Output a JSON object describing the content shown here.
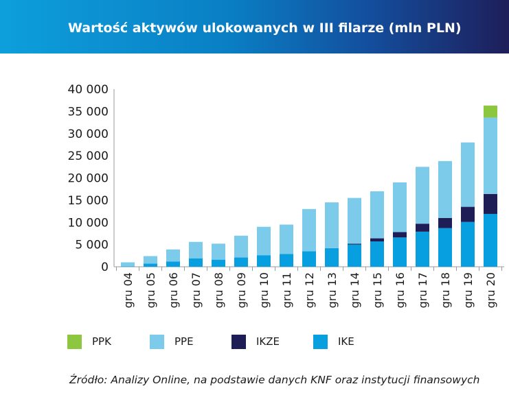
{
  "header": {
    "title": "Wartość aktywów ulokowanych w III filarze (mln PLN)"
  },
  "source": "Źródło: Analizy Online, na podstawie danych KNF oraz instytucji finansowych",
  "colors": {
    "header_start": "#0d9fdc",
    "header_end": "#1e1e5a",
    "PPK": "#8dc63f",
    "PPE": "#7ccbeb",
    "IKZE": "#1f1d55",
    "IKE": "#079fe0"
  },
  "chart_data": {
    "type": "bar",
    "stacked": true,
    "title": "Wartość aktywów ulokowanych w III filarze (mln PLN)",
    "categories": [
      "gru 04",
      "gru 05",
      "gru 06",
      "gru 07",
      "gru 08",
      "gru 09",
      "gru 10",
      "gru 11",
      "gru 12",
      "gru 13",
      "gru 14",
      "gru 15",
      "gru 16",
      "gru 17",
      "gru 18",
      "gru 19",
      "gru 20"
    ],
    "series": [
      {
        "name": "IKE",
        "color": "#079fe0",
        "values": [
          100,
          700,
          1200,
          1900,
          1600,
          2100,
          2600,
          2900,
          3500,
          4200,
          5000,
          5700,
          6600,
          7900,
          8700,
          10100,
          11900
        ]
      },
      {
        "name": "IKZE",
        "color": "#1f1d55",
        "values": [
          0,
          0,
          0,
          0,
          0,
          0,
          0,
          0,
          0,
          0,
          200,
          700,
          1200,
          1800,
          2300,
          3400,
          4500
        ]
      },
      {
        "name": "PPE",
        "color": "#7ccbeb",
        "values": [
          900,
          1700,
          2700,
          3700,
          3600,
          4900,
          6400,
          6600,
          9500,
          10300,
          10300,
          10600,
          11200,
          12800,
          12800,
          14500,
          17200
        ]
      },
      {
        "name": "PPK",
        "color": "#8dc63f",
        "values": [
          0,
          0,
          0,
          0,
          0,
          0,
          0,
          0,
          0,
          0,
          0,
          0,
          0,
          0,
          0,
          0,
          2700
        ]
      }
    ],
    "ylim": [
      0,
      40000
    ],
    "yticks": [
      0,
      5000,
      10000,
      15000,
      20000,
      25000,
      30000,
      35000,
      40000
    ],
    "ytick_labels": [
      "0",
      "5 000",
      "10 000",
      "15 000",
      "20 000",
      "25 000",
      "30 000",
      "35 000",
      "40 000"
    ],
    "grid": false,
    "legend_position": "bottom",
    "legend_order": [
      "PPK",
      "PPE",
      "IKZE",
      "IKE"
    ]
  }
}
